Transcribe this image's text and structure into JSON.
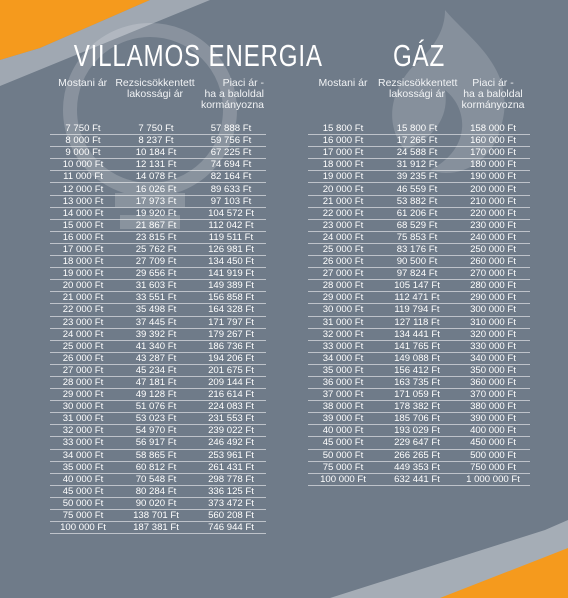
{
  "colors": {
    "background": "#6f7b89",
    "accent_orange": "#f59a1d",
    "accent_light": "#dfe3e7"
  },
  "icons": {
    "left_background": "lightbulb-icon",
    "right_background": "flame-icon"
  },
  "electricity": {
    "title": "VILLAMOS ENERGIA",
    "headers": [
      "Mostani ár",
      "Rezsicsökkentett\nlakossági ár",
      "Piaci ár -\nha a baloldal\nkormányozna"
    ],
    "rows": [
      [
        "7 750 Ft",
        "7 750 Ft",
        "57 888 Ft"
      ],
      [
        "8 000 Ft",
        "8 237 Ft",
        "59 756 Ft"
      ],
      [
        "9 000 Ft",
        "10 184 Ft",
        "67 225 Ft"
      ],
      [
        "10 000 Ft",
        "12 131 Ft",
        "74 694 Ft"
      ],
      [
        "11 000 Ft",
        "14 078 Ft",
        "82 164 Ft"
      ],
      [
        "12 000 Ft",
        "16 026 Ft",
        "89 633 Ft"
      ],
      [
        "13 000 Ft",
        "17 973 Ft",
        "97 103 Ft"
      ],
      [
        "14 000 Ft",
        "19 920 Ft",
        "104 572 Ft"
      ],
      [
        "15 000 Ft",
        "21 867 Ft",
        "112 042 Ft"
      ],
      [
        "16 000 Ft",
        "23 815 Ft",
        "119 511 Ft"
      ],
      [
        "17 000 Ft",
        "25 762 Ft",
        "126 981 Ft"
      ],
      [
        "18 000 Ft",
        "27 709 Ft",
        "134 450 Ft"
      ],
      [
        "19 000 Ft",
        "29 656 Ft",
        "141 919 Ft"
      ],
      [
        "20 000 Ft",
        "31 603 Ft",
        "149 389 Ft"
      ],
      [
        "21 000 Ft",
        "33 551 Ft",
        "156 858 Ft"
      ],
      [
        "22 000 Ft",
        "35 498 Ft",
        "164 328 Ft"
      ],
      [
        "23 000 Ft",
        "37 445 Ft",
        "171 797 Ft"
      ],
      [
        "24 000 Ft",
        "39 392 Ft",
        "179 267 Ft"
      ],
      [
        "25 000 Ft",
        "41 340 Ft",
        "186 736 Ft"
      ],
      [
        "26 000 Ft",
        "43 287 Ft",
        "194 206 Ft"
      ],
      [
        "27 000 Ft",
        "45 234 Ft",
        "201 675 Ft"
      ],
      [
        "28 000 Ft",
        "47 181 Ft",
        "209 144 Ft"
      ],
      [
        "29 000 Ft",
        "49 128 Ft",
        "216 614 Ft"
      ],
      [
        "30 000 Ft",
        "51 076 Ft",
        "224 083 Ft"
      ],
      [
        "31 000 Ft",
        "53 023 Ft",
        "231 553 Ft"
      ],
      [
        "32 000 Ft",
        "54 970 Ft",
        "239 022 Ft"
      ],
      [
        "33 000 Ft",
        "56 917 Ft",
        "246 492 Ft"
      ],
      [
        "34 000 Ft",
        "58 865 Ft",
        "253 961 Ft"
      ],
      [
        "35 000 Ft",
        "60 812 Ft",
        "261 431 Ft"
      ],
      [
        "40 000 Ft",
        "70 548 Ft",
        "298 778 Ft"
      ],
      [
        "45 000 Ft",
        "80 284 Ft",
        "336 125 Ft"
      ],
      [
        "50 000 Ft",
        "90 020 Ft",
        "373 472 Ft"
      ],
      [
        "75 000 Ft",
        "138 701 Ft",
        "560 208 Ft"
      ],
      [
        "100 000 Ft",
        "187 381 Ft",
        "746 944 Ft"
      ]
    ]
  },
  "gas": {
    "title": "GÁZ",
    "headers": [
      "Mostani ár",
      "Rezsicsökkentett\nlakossági ár",
      "Piaci ár -\nha a baloldal\nkormányozna"
    ],
    "rows": [
      [
        "15 800 Ft",
        "15 800 Ft",
        "158 000 Ft"
      ],
      [
        "16 000 Ft",
        "17 265 Ft",
        "160 000 Ft"
      ],
      [
        "17 000 Ft",
        "24 588 Ft",
        "170 000 Ft"
      ],
      [
        "18 000 Ft",
        "31 912 Ft",
        "180 000 Ft"
      ],
      [
        "19 000 Ft",
        "39 235 Ft",
        "190 000 Ft"
      ],
      [
        "20 000 Ft",
        "46 559 Ft",
        "200 000 Ft"
      ],
      [
        "21 000 Ft",
        "53 882 Ft",
        "210 000 Ft"
      ],
      [
        "22 000 Ft",
        "61 206 Ft",
        "220 000 Ft"
      ],
      [
        "23 000 Ft",
        "68 529 Ft",
        "230 000 Ft"
      ],
      [
        "24 000 Ft",
        "75 853 Ft",
        "240 000 Ft"
      ],
      [
        "25 000 Ft",
        "83 176 Ft",
        "250 000 Ft"
      ],
      [
        "26 000 Ft",
        "90 500 Ft",
        "260 000 Ft"
      ],
      [
        "27 000 Ft",
        "97 824 Ft",
        "270 000 Ft"
      ],
      [
        "28 000 Ft",
        "105 147 Ft",
        "280 000 Ft"
      ],
      [
        "29 000 Ft",
        "112 471 Ft",
        "290 000 Ft"
      ],
      [
        "30 000 Ft",
        "119 794 Ft",
        "300 000 Ft"
      ],
      [
        "31 000 Ft",
        "127 118 Ft",
        "310 000 Ft"
      ],
      [
        "32 000 Ft",
        "134 441 Ft",
        "320 000 Ft"
      ],
      [
        "33 000 Ft",
        "141 765 Ft",
        "330 000 Ft"
      ],
      [
        "34 000 Ft",
        "149 088 Ft",
        "340 000 Ft"
      ],
      [
        "35 000 Ft",
        "156 412 Ft",
        "350 000 Ft"
      ],
      [
        "36 000 Ft",
        "163 735 Ft",
        "360 000 Ft"
      ],
      [
        "37 000 Ft",
        "171 059 Ft",
        "370 000 Ft"
      ],
      [
        "38 000 Ft",
        "178 382 Ft",
        "380 000 Ft"
      ],
      [
        "39 000 Ft",
        "185 706 Ft",
        "390 000 Ft"
      ],
      [
        "40 000 Ft",
        "193 029 Ft",
        "400 000 Ft"
      ],
      [
        "45 000 Ft",
        "229 647 Ft",
        "450 000 Ft"
      ],
      [
        "50 000 Ft",
        "266 265 Ft",
        "500 000 Ft"
      ],
      [
        "75 000 Ft",
        "449 353 Ft",
        "750 000 Ft"
      ],
      [
        "100 000 Ft",
        "632 441 Ft",
        "1 000 000 Ft"
      ]
    ]
  }
}
